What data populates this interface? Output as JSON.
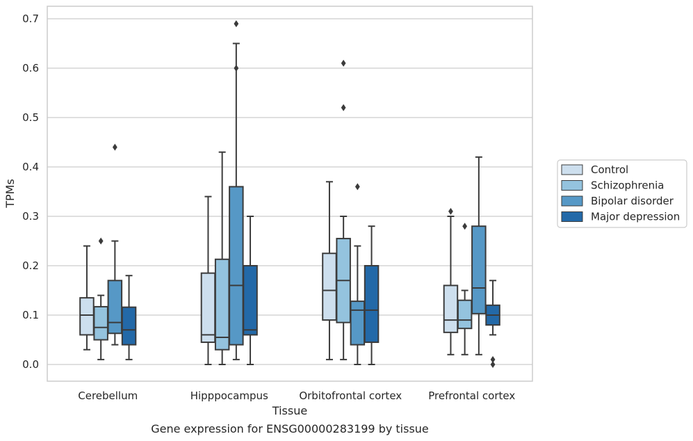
{
  "chart_data": {
    "type": "box",
    "title": "",
    "caption": "Gene expression for ENSG00000283199 by tissue",
    "xlabel": "Tissue",
    "ylabel": "TPMs",
    "ylim": [
      -0.033,
      0.725
    ],
    "yticks": [
      "0.0",
      "0.1",
      "0.2",
      "0.3",
      "0.4",
      "0.5",
      "0.6",
      "0.7"
    ],
    "categories": [
      "Cerebellum",
      "Hipppocampus",
      "Orbitofrontal cortex",
      "Prefrontal cortex"
    ],
    "grid": "horizontal",
    "legend_position": "right",
    "series": [
      {
        "name": "Control",
        "color": "#cddfee",
        "boxes": [
          {
            "whislo": 0.03,
            "q1": 0.06,
            "med": 0.1,
            "q3": 0.135,
            "whishi": 0.24,
            "fliers": []
          },
          {
            "whislo": 0.0,
            "q1": 0.045,
            "med": 0.06,
            "q3": 0.185,
            "whishi": 0.34,
            "fliers": []
          },
          {
            "whislo": 0.01,
            "q1": 0.09,
            "med": 0.15,
            "q3": 0.225,
            "whishi": 0.37,
            "fliers": []
          },
          {
            "whislo": 0.02,
            "q1": 0.065,
            "med": 0.09,
            "q3": 0.16,
            "whishi": 0.3,
            "fliers": [
              0.31
            ]
          }
        ]
      },
      {
        "name": "Schizophrenia",
        "color": "#94c3de",
        "boxes": [
          {
            "whislo": 0.01,
            "q1": 0.05,
            "med": 0.075,
            "q3": 0.117,
            "whishi": 0.14,
            "fliers": [
              0.25
            ]
          },
          {
            "whislo": 0.0,
            "q1": 0.03,
            "med": 0.055,
            "q3": 0.213,
            "whishi": 0.43,
            "fliers": []
          },
          {
            "whislo": 0.01,
            "q1": 0.085,
            "med": 0.17,
            "q3": 0.255,
            "whishi": 0.3,
            "fliers": [
              0.52,
              0.61
            ]
          },
          {
            "whislo": 0.02,
            "q1": 0.073,
            "med": 0.09,
            "q3": 0.13,
            "whishi": 0.15,
            "fliers": [
              0.28
            ]
          }
        ]
      },
      {
        "name": "Bipolar disorder",
        "color": "#5698c6",
        "boxes": [
          {
            "whislo": 0.04,
            "q1": 0.063,
            "med": 0.085,
            "q3": 0.17,
            "whishi": 0.25,
            "fliers": [
              0.44
            ]
          },
          {
            "whislo": 0.01,
            "q1": 0.04,
            "med": 0.16,
            "q3": 0.36,
            "whishi": 0.65,
            "fliers": [
              0.6,
              0.69
            ]
          },
          {
            "whislo": 0.0,
            "q1": 0.04,
            "med": 0.11,
            "q3": 0.128,
            "whishi": 0.24,
            "fliers": [
              0.36
            ]
          },
          {
            "whislo": 0.02,
            "q1": 0.103,
            "med": 0.155,
            "q3": 0.28,
            "whishi": 0.42,
            "fliers": []
          }
        ]
      },
      {
        "name": "Major depression",
        "color": "#2369a8",
        "boxes": [
          {
            "whislo": 0.01,
            "q1": 0.04,
            "med": 0.07,
            "q3": 0.116,
            "whishi": 0.18,
            "fliers": []
          },
          {
            "whislo": 0.0,
            "q1": 0.06,
            "med": 0.07,
            "q3": 0.2,
            "whishi": 0.3,
            "fliers": []
          },
          {
            "whislo": 0.0,
            "q1": 0.045,
            "med": 0.11,
            "q3": 0.2,
            "whishi": 0.28,
            "fliers": []
          },
          {
            "whislo": 0.06,
            "q1": 0.08,
            "med": 0.1,
            "q3": 0.12,
            "whishi": 0.17,
            "fliers": [
              0.0,
              0.01
            ]
          }
        ]
      }
    ],
    "colors": {
      "grid": "#cccccc",
      "frame": "#cccccc",
      "line": "#3b3b3b"
    }
  }
}
